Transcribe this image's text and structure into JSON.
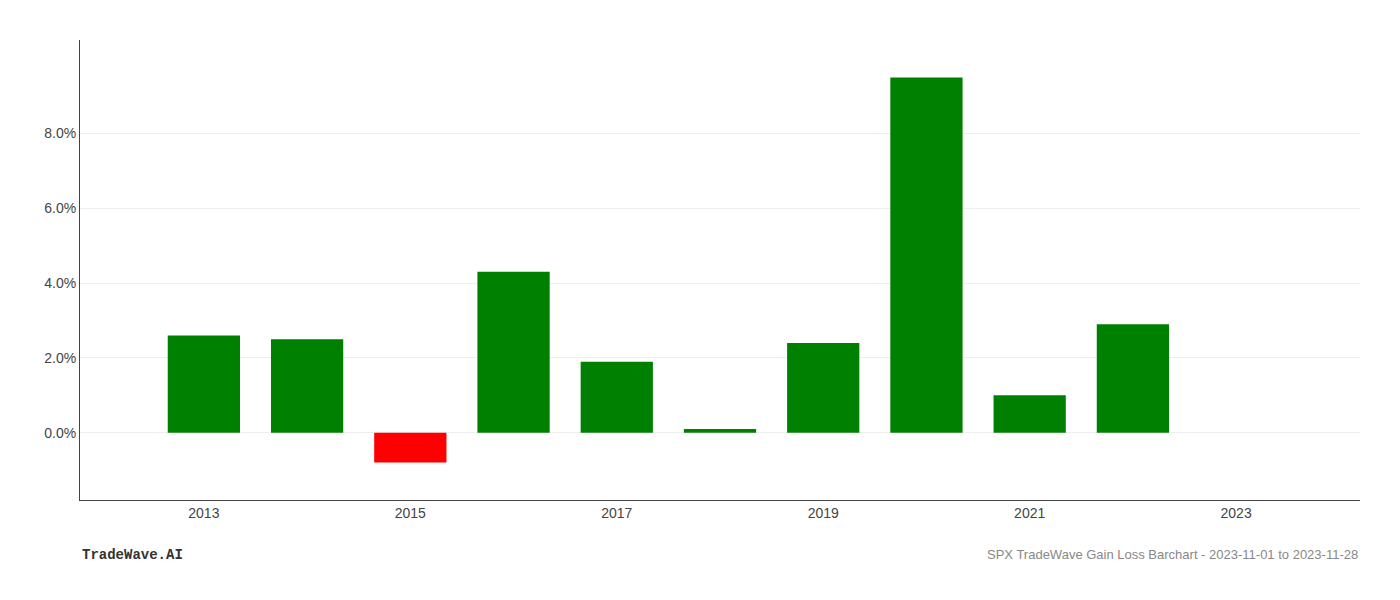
{
  "chart_data": {
    "type": "bar",
    "x": [
      2013,
      2014,
      2015,
      2016,
      2017,
      2018,
      2019,
      2020,
      2021,
      2022
    ],
    "values": [
      0.026,
      0.025,
      -0.008,
      0.043,
      0.019,
      0.001,
      0.024,
      0.095,
      0.01,
      0.029
    ],
    "colors": [
      "#008000",
      "#008000",
      "#ff0000",
      "#008000",
      "#008000",
      "#008000",
      "#008000",
      "#008000",
      "#008000",
      "#008000"
    ],
    "xlim": [
      2011.8,
      2024.2
    ],
    "xticks": [
      2013,
      2015,
      2017,
      2019,
      2021,
      2023
    ],
    "ylim": [
      -0.018,
      0.105
    ],
    "yticks": [
      {
        "value": 0.0,
        "label": "0.0%"
      },
      {
        "value": 0.02,
        "label": "2.0%"
      },
      {
        "value": 0.04,
        "label": "4.0%"
      },
      {
        "value": 0.06,
        "label": "6.0%"
      },
      {
        "value": 0.08,
        "label": "8.0%"
      }
    ],
    "grid": true,
    "annotations": [
      "TradeWave.AI",
      "SPX TradeWave Gain Loss Barchart - 2023-11-01 to 2023-11-28"
    ]
  }
}
